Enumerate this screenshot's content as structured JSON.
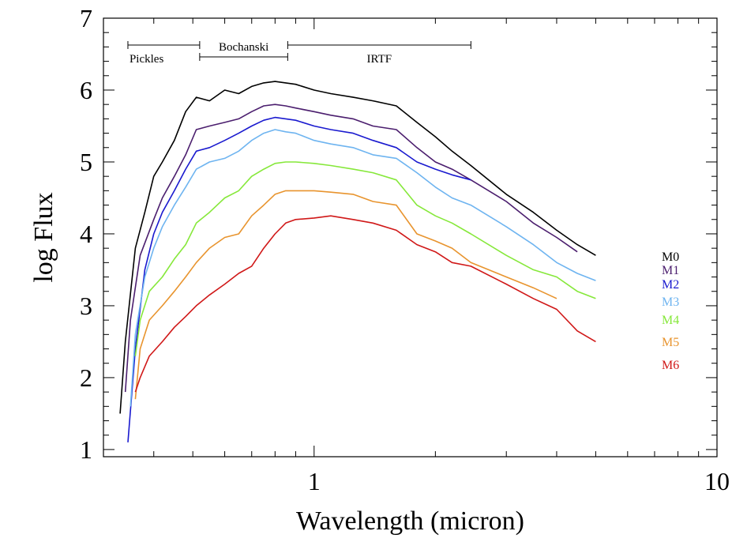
{
  "chart_data": {
    "type": "line",
    "xlabel": "Wavelength (micron)",
    "ylabel": "log Flux",
    "xscale": "log",
    "xlim": [
      0.3,
      10
    ],
    "ylim": [
      0.9,
      7
    ],
    "xtick_values": [
      1,
      10
    ],
    "xtick_labels": [
      "1",
      "10"
    ],
    "ytick_values": [
      1,
      2,
      3,
      4,
      5,
      6,
      7
    ],
    "ytick_labels": [
      "1",
      "2",
      "3",
      "4",
      "5",
      "6",
      "7"
    ],
    "grid": false,
    "legend_placement": "right",
    "ranges": [
      {
        "label": "Pickles",
        "x_start": 0.345,
        "x_end": 0.52,
        "label_position": "below"
      },
      {
        "label": "Bochanski",
        "x_start": 0.52,
        "x_end": 0.86,
        "label_position": "above"
      },
      {
        "label": "IRTF",
        "x_start": 0.86,
        "x_end": 2.45,
        "label_position": "below"
      }
    ],
    "series": [
      {
        "name": "M0",
        "color": "#000000",
        "x": [
          0.33,
          0.34,
          0.36,
          0.38,
          0.4,
          0.42,
          0.45,
          0.48,
          0.51,
          0.55,
          0.6,
          0.65,
          0.7,
          0.75,
          0.8,
          0.85,
          0.9,
          1.0,
          1.1,
          1.25,
          1.4,
          1.6,
          1.8,
          2.0,
          2.2,
          2.45,
          3.0,
          3.5,
          4.0,
          4.5,
          5.0
        ],
        "y": [
          1.5,
          2.5,
          3.8,
          4.3,
          4.8,
          5.0,
          5.3,
          5.7,
          5.9,
          5.85,
          6.0,
          5.95,
          6.05,
          6.1,
          6.12,
          6.1,
          6.08,
          6.0,
          5.95,
          5.9,
          5.85,
          5.78,
          5.55,
          5.35,
          5.15,
          4.95,
          4.55,
          4.3,
          4.05,
          3.85,
          3.7
        ]
      },
      {
        "name": "M1",
        "color": "#4b1e6e",
        "x": [
          0.34,
          0.35,
          0.37,
          0.4,
          0.42,
          0.45,
          0.48,
          0.51,
          0.55,
          0.6,
          0.65,
          0.7,
          0.75,
          0.8,
          0.85,
          0.9,
          1.0,
          1.1,
          1.25,
          1.4,
          1.6,
          1.8,
          2.0,
          2.2,
          2.45,
          3.0,
          3.5,
          4.0,
          4.5
        ],
        "y": [
          1.8,
          2.8,
          3.7,
          4.2,
          4.5,
          4.8,
          5.1,
          5.45,
          5.5,
          5.55,
          5.6,
          5.7,
          5.78,
          5.8,
          5.78,
          5.75,
          5.7,
          5.65,
          5.6,
          5.5,
          5.45,
          5.2,
          5.0,
          4.9,
          4.75,
          4.45,
          4.15,
          3.95,
          3.75
        ]
      },
      {
        "name": "M2",
        "color": "#1a1acf",
        "x": [
          0.345,
          0.36,
          0.38,
          0.4,
          0.42,
          0.45,
          0.48,
          0.51,
          0.55,
          0.6,
          0.65,
          0.7,
          0.75,
          0.8,
          0.85,
          0.9,
          1.0,
          1.1,
          1.25,
          1.4,
          1.6,
          1.8,
          2.0,
          2.2,
          2.45
        ],
        "y": [
          1.1,
          2.4,
          3.5,
          4.0,
          4.3,
          4.6,
          4.9,
          5.15,
          5.2,
          5.3,
          5.4,
          5.5,
          5.58,
          5.62,
          5.6,
          5.58,
          5.5,
          5.45,
          5.4,
          5.3,
          5.2,
          5.0,
          4.9,
          4.82,
          4.75
        ]
      },
      {
        "name": "M3",
        "color": "#6eb4f0",
        "x": [
          0.35,
          0.36,
          0.38,
          0.4,
          0.42,
          0.45,
          0.48,
          0.51,
          0.55,
          0.6,
          0.65,
          0.7,
          0.75,
          0.8,
          0.85,
          0.9,
          1.0,
          1.1,
          1.25,
          1.4,
          1.6,
          1.8,
          2.0,
          2.2,
          2.45,
          3.0,
          3.5,
          4.0,
          4.5,
          5.0
        ],
        "y": [
          1.6,
          2.6,
          3.4,
          3.8,
          4.1,
          4.4,
          4.65,
          4.9,
          5.0,
          5.05,
          5.15,
          5.3,
          5.4,
          5.45,
          5.42,
          5.4,
          5.3,
          5.25,
          5.2,
          5.1,
          5.05,
          4.85,
          4.65,
          4.5,
          4.4,
          4.1,
          3.85,
          3.6,
          3.45,
          3.35
        ]
      },
      {
        "name": "M4",
        "color": "#86e83a",
        "x": [
          0.36,
          0.37,
          0.39,
          0.42,
          0.45,
          0.48,
          0.51,
          0.55,
          0.6,
          0.65,
          0.7,
          0.75,
          0.8,
          0.85,
          0.9,
          1.0,
          1.1,
          1.25,
          1.4,
          1.6,
          1.8,
          2.0,
          2.2,
          2.45,
          3.0,
          3.5,
          4.0,
          4.5,
          5.0
        ],
        "y": [
          2.3,
          2.8,
          3.2,
          3.4,
          3.65,
          3.85,
          4.15,
          4.3,
          4.5,
          4.6,
          4.8,
          4.9,
          4.98,
          5.0,
          5.0,
          4.98,
          4.95,
          4.9,
          4.85,
          4.75,
          4.4,
          4.25,
          4.15,
          4.0,
          3.7,
          3.5,
          3.4,
          3.2,
          3.1
        ]
      },
      {
        "name": "M5",
        "color": "#e8942e",
        "x": [
          0.36,
          0.37,
          0.39,
          0.42,
          0.45,
          0.48,
          0.51,
          0.55,
          0.6,
          0.65,
          0.7,
          0.75,
          0.8,
          0.85,
          0.9,
          1.0,
          1.1,
          1.25,
          1.4,
          1.6,
          1.8,
          2.0,
          2.2,
          2.45,
          3.0,
          3.5,
          4.0
        ],
        "y": [
          1.7,
          2.4,
          2.8,
          3.0,
          3.2,
          3.4,
          3.6,
          3.8,
          3.95,
          4.0,
          4.25,
          4.4,
          4.55,
          4.6,
          4.6,
          4.6,
          4.58,
          4.55,
          4.45,
          4.4,
          4.0,
          3.9,
          3.8,
          3.6,
          3.4,
          3.25,
          3.1
        ]
      },
      {
        "name": "M6",
        "color": "#d01818",
        "x": [
          0.36,
          0.37,
          0.39,
          0.42,
          0.45,
          0.48,
          0.51,
          0.55,
          0.6,
          0.65,
          0.7,
          0.75,
          0.8,
          0.85,
          0.9,
          1.0,
          1.1,
          1.25,
          1.4,
          1.6,
          1.8,
          2.0,
          2.2,
          2.45,
          3.0,
          3.5,
          4.0,
          4.5,
          5.0
        ],
        "y": [
          1.8,
          2.0,
          2.3,
          2.5,
          2.7,
          2.85,
          3.0,
          3.15,
          3.3,
          3.45,
          3.55,
          3.8,
          4.0,
          4.15,
          4.2,
          4.22,
          4.25,
          4.2,
          4.15,
          4.05,
          3.85,
          3.75,
          3.6,
          3.55,
          3.3,
          3.1,
          2.95,
          2.65,
          2.5
        ]
      }
    ]
  }
}
